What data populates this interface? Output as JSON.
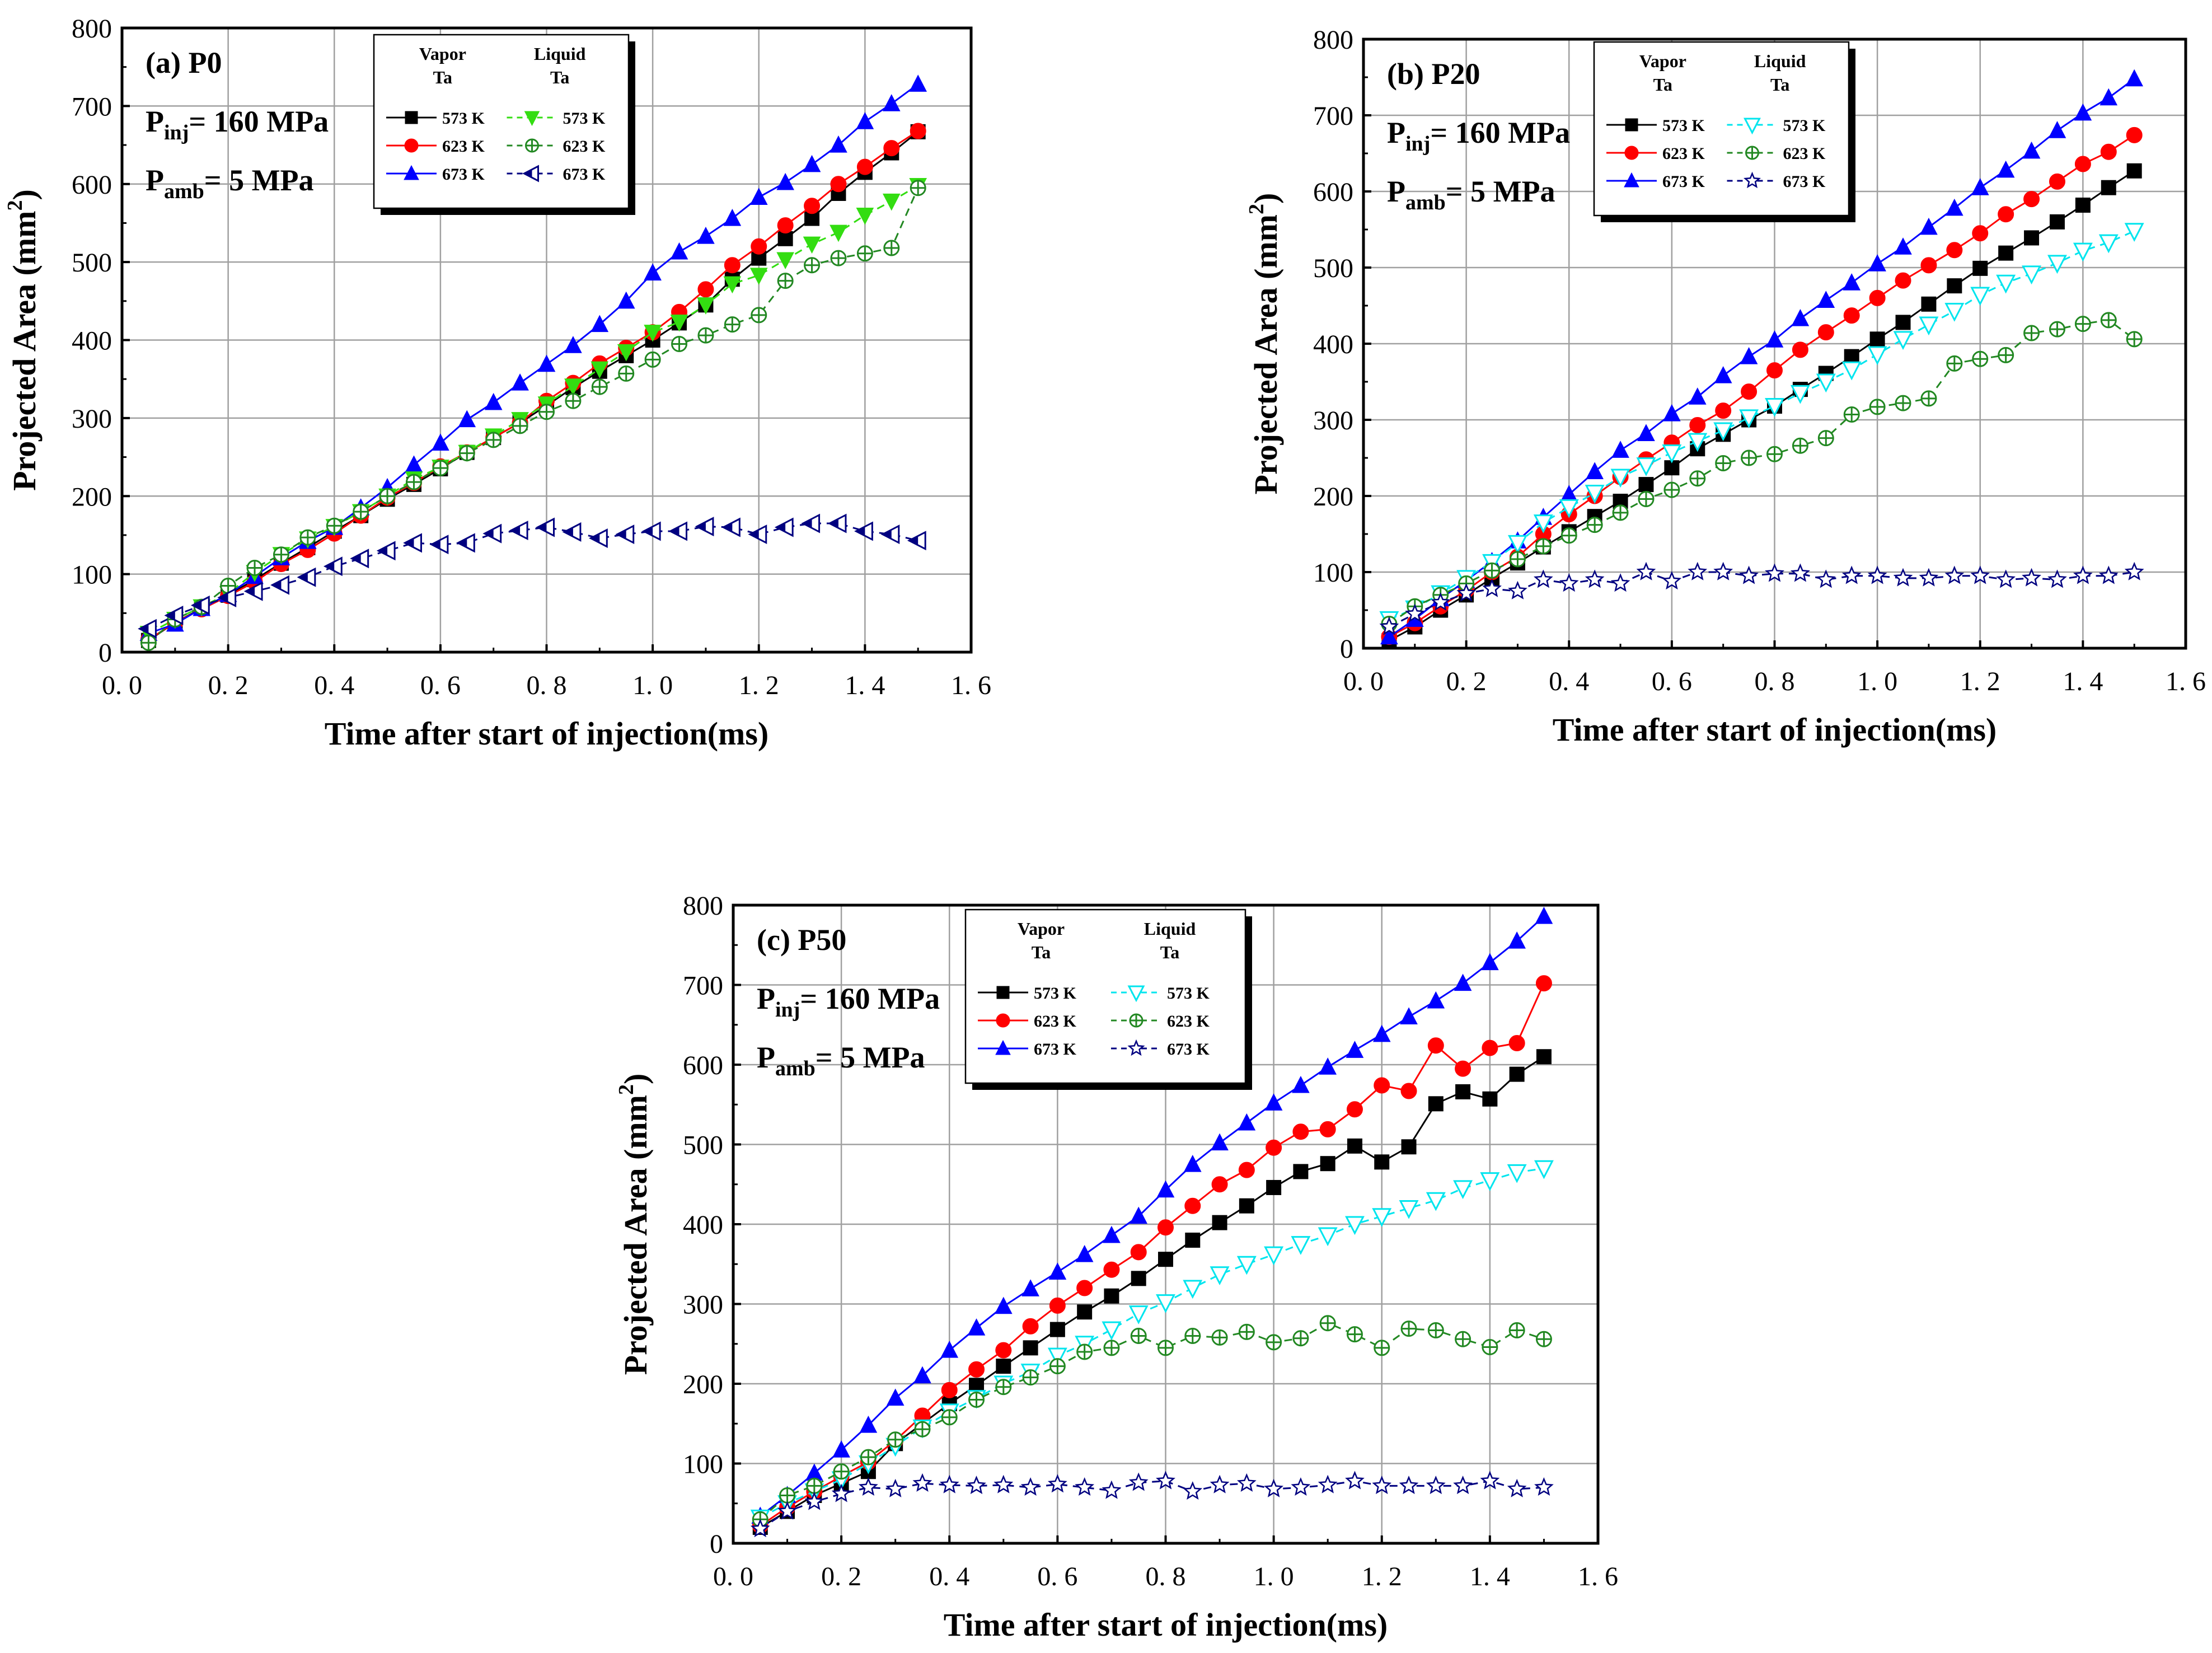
{
  "chart_data": [
    {
      "id": "P0",
      "type": "line",
      "panel_label": "(a) P0",
      "annotations": [
        {
          "main": "P",
          "sub": "inj",
          "rest": "= 160 MPa"
        },
        {
          "main": "P",
          "sub": "amb",
          "rest": "= 5 MPa"
        }
      ],
      "xlabel": "Time after start of injection(ms)",
      "ylabel": "Projected Area (mm",
      "ylabel_sup": "2",
      "ylabel_close": ")",
      "xlim": [
        0.0,
        1.6
      ],
      "ylim": [
        0,
        800
      ],
      "xticks": [
        0.0,
        0.2,
        0.4,
        0.6,
        0.8,
        1.0,
        1.2,
        1.4,
        1.6
      ],
      "xtick_labels": [
        "0. 0",
        "0. 2",
        "0. 4",
        "0. 6",
        "0. 8",
        "1. 0",
        "1. 2",
        "1. 4",
        "1. 6"
      ],
      "yticks": [
        0,
        100,
        200,
        300,
        400,
        500,
        600,
        700,
        800
      ],
      "ytick_labels": [
        "0",
        "100",
        "200",
        "300",
        "400",
        "500",
        "600",
        "700",
        "800"
      ],
      "grid": true,
      "legend": {
        "position": "top-center",
        "vapor_header": [
          "Vapor",
          "Ta"
        ],
        "liquid_header": [
          "Liquid",
          "Ta"
        ]
      },
      "x": [
        0.05,
        0.1,
        0.15,
        0.2,
        0.25,
        0.3,
        0.35,
        0.4,
        0.45,
        0.5,
        0.55,
        0.6,
        0.65,
        0.7,
        0.75,
        0.8,
        0.85,
        0.9,
        0.95,
        1.0,
        1.05,
        1.1,
        1.15,
        1.2,
        1.25,
        1.3,
        1.35,
        1.4,
        1.45,
        1.5
      ],
      "series": [
        {
          "name": "573 K",
          "group": "vapor",
          "color": "#000000",
          "marker": "square",
          "dashed": false,
          "values": [
            15,
            38,
            56,
            73,
            93,
            114,
            134,
            155,
            175,
            196,
            215,
            235,
            256,
            275,
            294,
            316,
            339,
            360,
            380,
            400,
            422,
            445,
            478,
            505,
            530,
            556,
            588,
            615,
            640,
            667
          ]
        },
        {
          "name": "623 K",
          "group": "vapor",
          "color": "#ff0000",
          "marker": "circle",
          "dashed": false,
          "values": [
            16,
            38,
            55,
            72,
            90,
            113,
            131,
            152,
            175,
            198,
            217,
            238,
            256,
            275,
            294,
            322,
            345,
            370,
            390,
            410,
            436,
            465,
            496,
            520,
            547,
            572,
            600,
            622,
            646,
            668
          ]
        },
        {
          "name": "673 K",
          "group": "vapor",
          "color": "#0000ff",
          "marker": "triangle-up",
          "dashed": false,
          "values": [
            24,
            36,
            56,
            74,
            97,
            121,
            142,
            160,
            185,
            211,
            240,
            268,
            298,
            320,
            345,
            369,
            393,
            420,
            450,
            486,
            513,
            533,
            556,
            583,
            602,
            625,
            650,
            680,
            703,
            728
          ]
        },
        {
          "name": "573 K",
          "group": "liquid",
          "color": "#33dd11",
          "marker": "triangle-down-filled",
          "dashed": true,
          "values": [
            24,
            42,
            58,
            75,
            102,
            125,
            145,
            161,
            180,
            200,
            222,
            237,
            256,
            277,
            298,
            318,
            341,
            363,
            385,
            410,
            423,
            445,
            472,
            483,
            503,
            523,
            538,
            560,
            578,
            598
          ]
        },
        {
          "name": "623 K",
          "group": "liquid",
          "color": "#228822",
          "marker": "circle-cross",
          "dashed": true,
          "values": [
            12,
            42,
            58,
            85,
            108,
            125,
            147,
            162,
            180,
            200,
            218,
            236,
            255,
            272,
            290,
            308,
            322,
            340,
            357,
            375,
            395,
            406,
            420,
            432,
            476,
            496,
            505,
            511,
            518,
            595
          ]
        },
        {
          "name": "673 K",
          "group": "liquid",
          "color": "#000080",
          "marker": "triangle-left",
          "dashed": true,
          "values": [
            30,
            47,
            60,
            70,
            78,
            86,
            96,
            110,
            120,
            130,
            140,
            138,
            140,
            152,
            156,
            160,
            154,
            146,
            151,
            155,
            155,
            161,
            160,
            151,
            160,
            165,
            165,
            155,
            151,
            143
          ]
        }
      ]
    },
    {
      "id": "P20",
      "type": "line",
      "panel_label": "(b) P20",
      "annotations": [
        {
          "main": "P",
          "sub": "inj",
          "rest": "= 160 MPa"
        },
        {
          "main": "P",
          "sub": "amb",
          "rest": "= 5 MPa"
        }
      ],
      "xlabel": "Time after start of injection(ms)",
      "ylabel": "Projected Area (mm",
      "ylabel_sup": "2",
      "ylabel_close": ")",
      "xlim": [
        0.0,
        1.6
      ],
      "ylim": [
        0,
        800
      ],
      "xticks": [
        0.0,
        0.2,
        0.4,
        0.6,
        0.8,
        1.0,
        1.2,
        1.4,
        1.6
      ],
      "xtick_labels": [
        "0. 0",
        "0. 2",
        "0. 4",
        "0. 6",
        "0. 8",
        "1. 0",
        "1. 2",
        "1. 4",
        "1. 6"
      ],
      "yticks": [
        0,
        100,
        200,
        300,
        400,
        500,
        600,
        700,
        800
      ],
      "ytick_labels": [
        "0",
        "100",
        "200",
        "300",
        "400",
        "500",
        "600",
        "700",
        "800"
      ],
      "grid": true,
      "legend": {
        "position": "top-center",
        "vapor_header": [
          "Vapor",
          "Ta"
        ],
        "liquid_header": [
          "Liquid",
          "Ta"
        ]
      },
      "x": [
        0.05,
        0.1,
        0.15,
        0.2,
        0.25,
        0.3,
        0.35,
        0.4,
        0.45,
        0.5,
        0.55,
        0.6,
        0.65,
        0.7,
        0.75,
        0.8,
        0.85,
        0.9,
        0.95,
        1.0,
        1.05,
        1.1,
        1.15,
        1.2,
        1.25,
        1.3,
        1.35,
        1.4,
        1.45,
        1.5
      ],
      "series": [
        {
          "name": "573 K",
          "group": "vapor",
          "color": "#000000",
          "marker": "square",
          "dashed": false,
          "values": [
            10,
            28,
            50,
            70,
            92,
            112,
            133,
            153,
            173,
            193,
            215,
            237,
            262,
            281,
            300,
            318,
            340,
            361,
            383,
            406,
            428,
            452,
            476,
            499,
            519,
            539,
            560,
            582,
            605,
            627
          ]
        },
        {
          "name": "623 K",
          "group": "vapor",
          "color": "#ff0000",
          "marker": "circle",
          "dashed": false,
          "values": [
            15,
            33,
            55,
            76,
            100,
            120,
            150,
            176,
            200,
            225,
            248,
            270,
            293,
            312,
            337,
            365,
            392,
            415,
            437,
            460,
            483,
            503,
            523,
            545,
            570,
            590,
            613,
            636,
            652,
            674
          ]
        },
        {
          "name": "673 K",
          "group": "vapor",
          "color": "#0000ff",
          "marker": "triangle-up",
          "dashed": false,
          "values": [
            15,
            38,
            65,
            89,
            114,
            141,
            172,
            202,
            232,
            260,
            282,
            308,
            330,
            358,
            383,
            405,
            433,
            457,
            480,
            505,
            527,
            553,
            578,
            605,
            628,
            653,
            680,
            703,
            723,
            748
          ]
        },
        {
          "name": "573 K",
          "group": "liquid",
          "color": "#00e5ee",
          "marker": "triangle-down",
          "dashed": true,
          "values": [
            38,
            52,
            72,
            92,
            113,
            138,
            165,
            185,
            204,
            225,
            240,
            257,
            272,
            286,
            303,
            318,
            335,
            350,
            366,
            386,
            406,
            425,
            443,
            464,
            480,
            492,
            506,
            522,
            533,
            548
          ]
        },
        {
          "name": "623 K",
          "group": "liquid",
          "color": "#228822",
          "marker": "circle-cross",
          "dashed": true,
          "values": [
            32,
            55,
            70,
            85,
            102,
            117,
            134,
            148,
            162,
            178,
            196,
            208,
            223,
            243,
            250,
            255,
            266,
            276,
            307,
            317,
            322,
            328,
            374,
            380,
            385,
            414,
            419,
            426,
            431,
            406
          ]
        },
        {
          "name": "673 K",
          "group": "liquid",
          "color": "#000080",
          "marker": "star",
          "dashed": true,
          "values": [
            28,
            45,
            60,
            72,
            78,
            75,
            90,
            85,
            90,
            85,
            100,
            88,
            100,
            100,
            95,
            98,
            98,
            90,
            95,
            95,
            92,
            92,
            95,
            95,
            90,
            92,
            90,
            95,
            95,
            100
          ]
        }
      ]
    },
    {
      "id": "P50",
      "type": "line",
      "panel_label": "(c) P50",
      "annotations": [
        {
          "main": "P",
          "sub": "inj",
          "rest": "= 160 MPa"
        },
        {
          "main": "P",
          "sub": "amb",
          "rest": "= 5 MPa"
        }
      ],
      "xlabel": "Time after start of injection(ms)",
      "ylabel": "Projected Area (mm",
      "ylabel_sup": "2",
      "ylabel_close": ")",
      "xlim": [
        0.0,
        1.6
      ],
      "ylim": [
        0,
        800
      ],
      "xticks": [
        0.0,
        0.2,
        0.4,
        0.6,
        0.8,
        1.0,
        1.2,
        1.4,
        1.6
      ],
      "xtick_labels": [
        "0. 0",
        "0. 2",
        "0. 4",
        "0. 6",
        "0. 8",
        "1. 0",
        "1. 2",
        "1. 4",
        "1. 6"
      ],
      "yticks": [
        0,
        100,
        200,
        300,
        400,
        500,
        600,
        700,
        800
      ],
      "ytick_labels": [
        "0",
        "100",
        "200",
        "300",
        "400",
        "500",
        "600",
        "700",
        "800"
      ],
      "grid": true,
      "legend": {
        "position": "top-center",
        "vapor_header": [
          "Vapor",
          "Ta"
        ],
        "liquid_header": [
          "Liquid",
          "Ta"
        ]
      },
      "x": [
        0.05,
        0.1,
        0.15,
        0.2,
        0.25,
        0.3,
        0.35,
        0.4,
        0.45,
        0.5,
        0.55,
        0.6,
        0.65,
        0.7,
        0.75,
        0.8,
        0.85,
        0.9,
        0.95,
        1.0,
        1.05,
        1.1,
        1.15,
        1.2,
        1.25,
        1.3,
        1.35,
        1.4,
        1.45,
        1.5
      ],
      "series": [
        {
          "name": "573 K",
          "group": "vapor",
          "color": "#000000",
          "marker": "square",
          "dashed": false,
          "values": [
            20,
            40,
            60,
            75,
            90,
            125,
            150,
            175,
            198,
            222,
            245,
            268,
            290,
            310,
            332,
            356,
            380,
            402,
            423,
            446,
            466,
            476,
            498,
            478,
            497,
            551,
            566,
            557,
            588,
            610
          ]
        },
        {
          "name": "623 K",
          "group": "vapor",
          "color": "#ff0000",
          "marker": "circle",
          "dashed": false,
          "values": [
            22,
            45,
            65,
            84,
            102,
            129,
            160,
            192,
            218,
            242,
            272,
            298,
            320,
            343,
            365,
            396,
            423,
            450,
            468,
            496,
            516,
            519,
            544,
            574,
            567,
            624,
            595,
            621,
            627,
            702
          ]
        },
        {
          "name": "673 K",
          "group": "vapor",
          "color": "#0000ff",
          "marker": "triangle-up",
          "dashed": false,
          "values": [
            34,
            60,
            88,
            117,
            148,
            182,
            210,
            242,
            270,
            297,
            319,
            340,
            362,
            386,
            410,
            443,
            475,
            502,
            527,
            552,
            574,
            597,
            618,
            638,
            660,
            680,
            702,
            728,
            755,
            786
          ]
        },
        {
          "name": "573 K",
          "group": "liquid",
          "color": "#00e5ee",
          "marker": "triangle-down",
          "dashed": true,
          "values": [
            32,
            50,
            65,
            80,
            100,
            122,
            145,
            165,
            182,
            200,
            215,
            235,
            250,
            268,
            288,
            302,
            320,
            337,
            350,
            362,
            375,
            386,
            400,
            410,
            420,
            430,
            445,
            455,
            465,
            470
          ]
        },
        {
          "name": "623 K",
          "group": "liquid",
          "color": "#228822",
          "marker": "circle-cross",
          "dashed": true,
          "values": [
            30,
            60,
            72,
            90,
            108,
            130,
            143,
            158,
            180,
            196,
            208,
            222,
            240,
            245,
            260,
            245,
            260,
            258,
            265,
            252,
            257,
            276,
            262,
            245,
            269,
            267,
            256,
            246,
            267,
            256
          ]
        },
        {
          "name": "673 K",
          "group": "liquid",
          "color": "#000080",
          "marker": "star",
          "dashed": true,
          "values": [
            18,
            40,
            52,
            62,
            70,
            68,
            75,
            73,
            72,
            73,
            70,
            74,
            70,
            66,
            76,
            78,
            65,
            73,
            75,
            68,
            70,
            73,
            78,
            72,
            72,
            72,
            72,
            78,
            68,
            70
          ]
        }
      ]
    }
  ]
}
